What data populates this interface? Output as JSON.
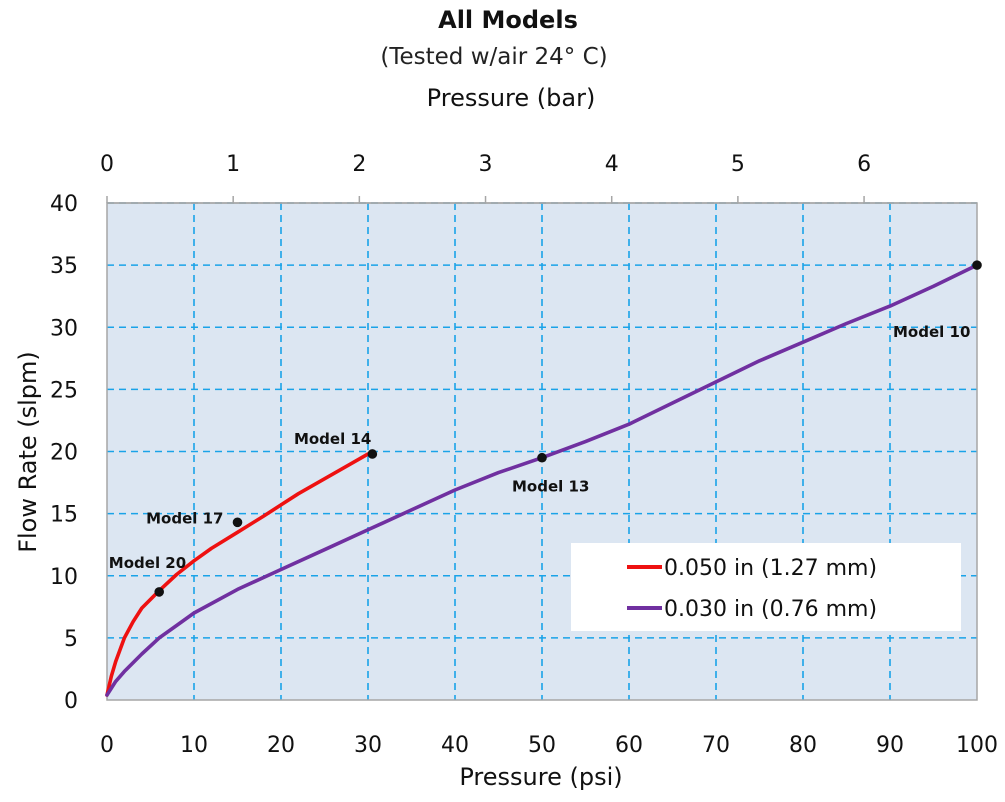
{
  "chart_data": {
    "type": "line",
    "title": "All Models",
    "subtitle": "(Tested w/air 24° C)",
    "xlabel": "Pressure (psi)",
    "x2label": "Pressure (bar)",
    "ylabel": "Flow Rate (slpm)",
    "xlim": [
      0,
      100
    ],
    "ylim": [
      0,
      40
    ],
    "x2lim": [
      0,
      6.895
    ],
    "xticks": [
      "0",
      "10",
      "20",
      "30",
      "40",
      "50",
      "60",
      "70",
      "80",
      "90",
      "100"
    ],
    "yticks": [
      "0",
      "5",
      "10",
      "15",
      "20",
      "25",
      "30",
      "35",
      "40"
    ],
    "x2ticks": [
      "0",
      "1",
      "2",
      "3",
      "4",
      "5",
      "6"
    ],
    "grid": true,
    "legend_position": "bottom-right",
    "series": [
      {
        "name": "0.050 in (1.27 mm)",
        "color": "#ee1111",
        "x": [
          0,
          0.5,
          1,
          2,
          3,
          4,
          6,
          8,
          10,
          12,
          15,
          18,
          20,
          22,
          25,
          28,
          30
        ],
        "y": [
          0.4,
          1.9,
          3.1,
          5.0,
          6.3,
          7.4,
          8.8,
          10.1,
          11.2,
          12.2,
          13.5,
          14.8,
          15.7,
          16.6,
          17.8,
          19.0,
          19.8
        ]
      },
      {
        "name": "0.030 in (0.76 mm)",
        "color": "#7030a0",
        "x": [
          0,
          1,
          2,
          4,
          6,
          8,
          10,
          15,
          20,
          25,
          30,
          35,
          40,
          45,
          50,
          55,
          60,
          65,
          70,
          75,
          80,
          85,
          90,
          95,
          100
        ],
        "y": [
          0.4,
          1.5,
          2.3,
          3.7,
          5.0,
          6.0,
          7.0,
          8.9,
          10.5,
          12.1,
          13.7,
          15.3,
          16.9,
          18.3,
          19.5,
          20.8,
          22.2,
          23.9,
          25.6,
          27.3,
          28.8,
          30.3,
          31.7,
          33.3,
          35.0
        ]
      }
    ],
    "points": [
      {
        "label": "Model 20",
        "x": 6,
        "y": 8.7
      },
      {
        "label": "Model 17",
        "x": 15,
        "y": 14.3
      },
      {
        "label": "Model 14",
        "x": 30.5,
        "y": 19.8
      },
      {
        "label": "Model 13",
        "x": 50,
        "y": 19.5
      },
      {
        "label": "Model 10",
        "x": 100,
        "y": 35.0
      }
    ],
    "colors": {
      "plot_background": "#dce6f2",
      "grid": "#1aa3e8",
      "frame": "#a6a6a6"
    }
  }
}
